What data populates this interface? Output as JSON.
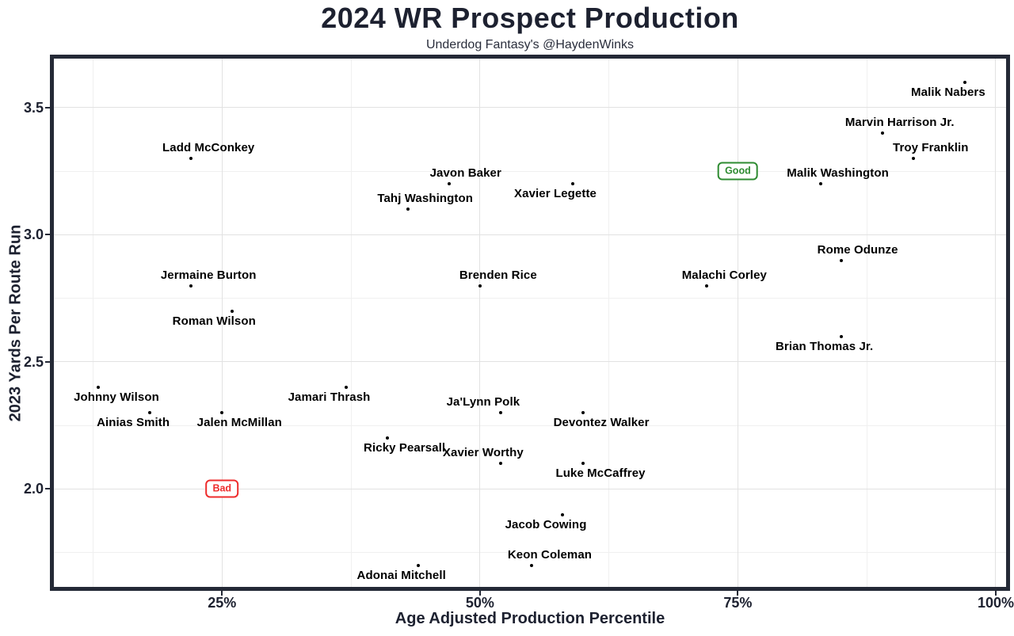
{
  "header": {
    "title": "2024 WR Prospect Production",
    "subtitle": "Underdog Fantasy's @HaydenWinks"
  },
  "chart_data": {
    "type": "scatter",
    "title": "2024 WR Prospect Production",
    "subtitle": "Underdog Fantasy's @HaydenWinks",
    "xlabel": "Age Adjusted Production Percentile",
    "ylabel": "2023 Yards Per Route Run",
    "grid": "major+minor",
    "legend": "none",
    "x_axis": {
      "range": [
        8.7,
        101.0
      ],
      "ticks": [
        {
          "label": "25%",
          "value": 25
        },
        {
          "label": "50%",
          "value": 50
        },
        {
          "label": "75%",
          "value": 75
        },
        {
          "label": "100%",
          "value": 100
        }
      ],
      "minor_ticks": [
        12.5,
        37.5,
        62.5,
        87.5
      ]
    },
    "y_axis": {
      "range": [
        1.615,
        3.693
      ],
      "ticks": [
        {
          "label": "3.5",
          "value": 3.5
        },
        {
          "label": "3.0",
          "value": 3.0
        },
        {
          "label": "2.5",
          "value": 2.5
        },
        {
          "label": "2.0",
          "value": 2.0
        }
      ],
      "minor_ticks": [
        3.25,
        2.75,
        2.25,
        1.75
      ]
    },
    "points": [
      {
        "name": "Malik Nabers",
        "x": 97,
        "y": 3.6,
        "label_pos": "below",
        "label_dx": -21
      },
      {
        "name": "Marvin Harrison Jr.",
        "x": 89,
        "y": 3.4,
        "label_pos": "above",
        "label_dx": 22
      },
      {
        "name": "Troy Franklin",
        "x": 92,
        "y": 3.3,
        "label_pos": "above",
        "label_dx": 22
      },
      {
        "name": "Ladd McConkey",
        "x": 22,
        "y": 3.3,
        "label_pos": "above",
        "label_dx": 22
      },
      {
        "name": "Javon Baker",
        "x": 47,
        "y": 3.2,
        "label_pos": "above",
        "label_dx": 21
      },
      {
        "name": "Xavier Legette",
        "x": 59,
        "y": 3.2,
        "label_pos": "below",
        "label_dx": -22
      },
      {
        "name": "Malik Washington",
        "x": 83,
        "y": 3.2,
        "label_pos": "above",
        "label_dx": 22
      },
      {
        "name": "Tahj Washington",
        "x": 43,
        "y": 3.1,
        "label_pos": "above",
        "label_dx": 22
      },
      {
        "name": "Rome Odunze",
        "x": 85,
        "y": 2.9,
        "label_pos": "above",
        "label_dx": 21
      },
      {
        "name": "Jermaine Burton",
        "x": 22,
        "y": 2.8,
        "label_pos": "above",
        "label_dx": 22
      },
      {
        "name": "Brenden Rice",
        "x": 50,
        "y": 2.8,
        "label_pos": "above",
        "label_dx": 23
      },
      {
        "name": "Malachi Corley",
        "x": 72,
        "y": 2.8,
        "label_pos": "above",
        "label_dx": 22
      },
      {
        "name": "Roman Wilson",
        "x": 26,
        "y": 2.7,
        "label_pos": "below",
        "label_dx": -23
      },
      {
        "name": "Brian Thomas Jr.",
        "x": 85,
        "y": 2.6,
        "label_pos": "below",
        "label_dx": -21
      },
      {
        "name": "Johnny Wilson",
        "x": 13,
        "y": 2.4,
        "label_pos": "below",
        "label_dx": 23
      },
      {
        "name": "Jamari Thrash",
        "x": 37,
        "y": 2.4,
        "label_pos": "below",
        "label_dx": -21
      },
      {
        "name": "Ja'Lynn Polk",
        "x": 52,
        "y": 2.3,
        "label_pos": "above",
        "label_dx": -22
      },
      {
        "name": "Ainias Smith",
        "x": 18,
        "y": 2.3,
        "label_pos": "below",
        "label_dx": -21
      },
      {
        "name": "Jalen McMillan",
        "x": 25,
        "y": 2.3,
        "label_pos": "below",
        "label_dx": 22
      },
      {
        "name": "Devontez Walker",
        "x": 60,
        "y": 2.3,
        "label_pos": "below",
        "label_dx": 23
      },
      {
        "name": "Ricky Pearsall",
        "x": 41,
        "y": 2.2,
        "label_pos": "below",
        "label_dx": 22
      },
      {
        "name": "Xavier Worthy",
        "x": 52,
        "y": 2.1,
        "label_pos": "above",
        "label_dx": -22
      },
      {
        "name": "Luke McCaffrey",
        "x": 60,
        "y": 2.1,
        "label_pos": "below",
        "label_dx": 22
      },
      {
        "name": "Jacob Cowing",
        "x": 58,
        "y": 1.9,
        "label_pos": "below",
        "label_dx": -21
      },
      {
        "name": "Keon Coleman",
        "x": 55,
        "y": 1.7,
        "label_pos": "above",
        "label_dx": 23
      },
      {
        "name": "Adonai Mitchell",
        "x": 44,
        "y": 1.7,
        "label_pos": "below",
        "label_dx": -21
      }
    ],
    "annotations": [
      {
        "text": "Good",
        "x": 75,
        "y": 3.25,
        "color": "#2e8b31"
      },
      {
        "text": "Bad",
        "x": 25,
        "y": 2.0,
        "color": "#ee2c2c"
      }
    ]
  },
  "colors": {
    "background": "#ffffff",
    "text_dark": "#1d2130",
    "plot_border": "#242936",
    "grid_major": "#e2e2e2",
    "grid_minor": "#f0f0f0",
    "point": "#000000",
    "good_annotation": "#2e8b31",
    "bad_annotation": "#ee2c2c"
  }
}
